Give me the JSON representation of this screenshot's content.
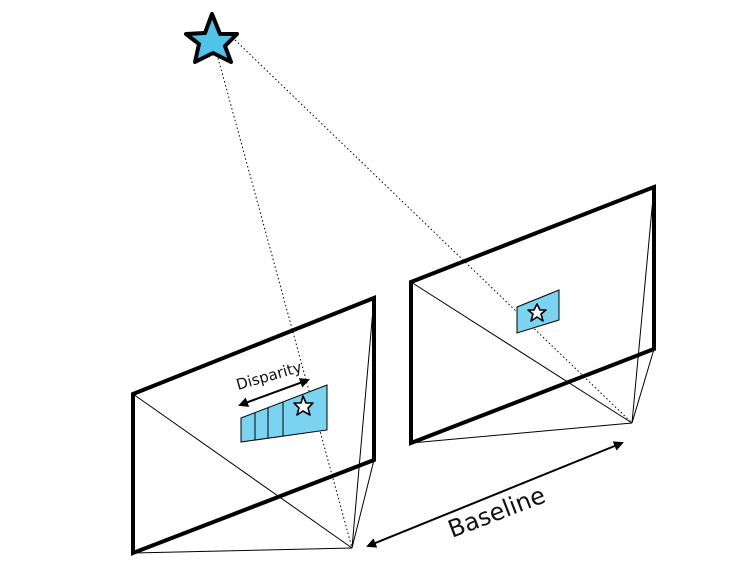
{
  "labels": {
    "disparity": "Disparity",
    "baseline": "Baseline"
  },
  "colors": {
    "patch": "#7ad4f0",
    "star": "#4fc3e8",
    "stroke": "#000000"
  }
}
